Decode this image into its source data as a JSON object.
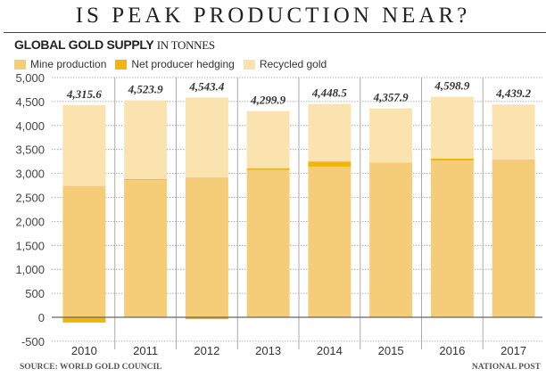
{
  "header": {
    "title": "IS PEAK PRODUCTION NEAR?",
    "subtitle": "GLOBAL GOLD SUPPLY",
    "subtitle_unit": "IN TONNES"
  },
  "footer": {
    "source": "SOURCE: WORLD GOLD COUNCIL",
    "credit": "NATIONAL POST"
  },
  "chart_data": {
    "type": "bar",
    "stacked": true,
    "title": "GLOBAL GOLD SUPPLY IN TONNES",
    "xlabel": "",
    "ylabel": "Tonnes",
    "ylim": [
      -500,
      5000
    ],
    "yticks": [
      5000,
      4500,
      4000,
      3500,
      3000,
      2500,
      2000,
      1500,
      1000,
      500,
      0,
      -500
    ],
    "ytick_labels": [
      "5,000",
      "4,500",
      "4,000",
      "3,500",
      "3,000",
      "2,500",
      "2,000",
      "1,500",
      "1,000",
      "500",
      "0",
      "-500"
    ],
    "grid": true,
    "legend_position": "top-left",
    "categories": [
      "2010",
      "2011",
      "2012",
      "2013",
      "2014",
      "2015",
      "2016",
      "2017"
    ],
    "series": [
      {
        "name": "Mine production",
        "color": "#f5cd78",
        "values": [
          2740,
          2860,
          2920,
          3070,
          3140,
          3230,
          3270,
          3290
        ]
      },
      {
        "name": "Net producer hedging",
        "color": "#f0b50f",
        "values": [
          -110,
          20,
          -40,
          40,
          110,
          0,
          40,
          0
        ]
      },
      {
        "name": "Recycled gold",
        "color": "#fbe3b0",
        "values": [
          1686,
          1644,
          1663,
          1190,
          1199,
          1128,
          1289,
          1149
        ]
      }
    ],
    "totals": [
      4315.6,
      4523.9,
      4543.4,
      4299.9,
      4448.5,
      4357.9,
      4598.9,
      4439.2
    ],
    "total_labels": [
      "4,315.6",
      "4,523.9",
      "4,543.4",
      "4,299.9",
      "4,448.5",
      "4,357.9",
      "4,598.9",
      "4,439.2"
    ]
  }
}
